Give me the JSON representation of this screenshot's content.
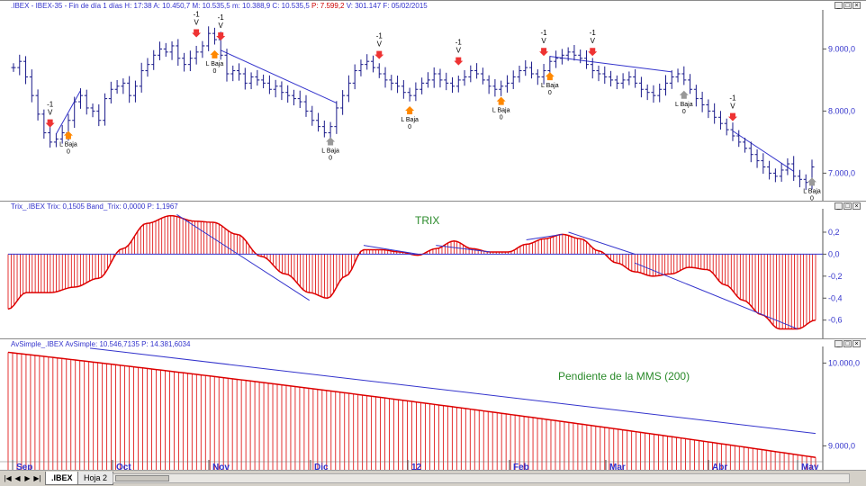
{
  "pane1": {
    "title_name": ".IBEX - IBEX-35 - Fin de día 1 días",
    "title_values": "H: 17:38  A: 10.450,7  M: 10.535,5  m: 10.388,9  C: 10.535,5",
    "title_change": "P: 7.599,2",
    "title_rest": "V: 301.147  F: 05/02/2015"
  },
  "pane2": {
    "title_name": "Trix_.IBEX",
    "title_values": "Trix: 0,1505  Band_Trix: 0,0000  P: 1,1967",
    "note": "TRIX"
  },
  "pane3": {
    "title_name": "AvSimple_.IBEX",
    "title_label": "AvSimple:",
    "title_values": "10.546,7135  P: 14.381,6034",
    "note": "Pendiente de la MMS (200)"
  },
  "window_buttons": [
    "_",
    "□",
    "×"
  ],
  "tabs": {
    "sheet1": ".IBEX",
    "sheet2": "Hoja 2"
  },
  "nav_buttons": [
    "|◀",
    "◀",
    "▶",
    "▶|"
  ],
  "colors": {
    "bars": "#1a1a8a",
    "histogram": "#dd0000",
    "trend": "#3333cc",
    "up_arrow": "#ff8800",
    "down_arrow": "#ee3333",
    "note": "#2a8a2a"
  },
  "chart_data": [
    {
      "type": "bar",
      "name": "price",
      "x_ticks": [
        "Sep",
        "Oct",
        "Nov",
        "Dic",
        "12",
        "Feb",
        "Mar",
        "Abr",
        "May"
      ],
      "y_ticks": [
        "9.000,0",
        "8.000,0",
        "7.000,0"
      ],
      "ylim": [
        6600,
        9600
      ],
      "closes": [
        8700,
        8800,
        8550,
        8250,
        7950,
        7650,
        7500,
        7550,
        7650,
        7850,
        8150,
        8250,
        8050,
        8000,
        7850,
        8200,
        8350,
        8400,
        8450,
        8250,
        8400,
        8650,
        8750,
        8900,
        9000,
        8950,
        9050,
        8850,
        8750,
        8850,
        8950,
        9050,
        9250,
        9150,
        8900,
        8600,
        8650,
        8600,
        8450,
        8550,
        8500,
        8450,
        8350,
        8400,
        8300,
        8250,
        8200,
        8150,
        8000,
        7850,
        7750,
        7650,
        7750,
        8050,
        8250,
        8450,
        8650,
        8750,
        8800,
        8700,
        8600,
        8500,
        8450,
        8400,
        8300,
        8250,
        8350,
        8450,
        8500,
        8600,
        8500,
        8450,
        8400,
        8500,
        8550,
        8650,
        8600,
        8500,
        8400,
        8350,
        8400,
        8450,
        8550,
        8650,
        8700,
        8600,
        8550,
        8650,
        8800,
        8850,
        8900,
        8950,
        8900,
        8850,
        8750,
        8650,
        8600,
        8550,
        8500,
        8450,
        8500,
        8550,
        8450,
        8350,
        8300,
        8250,
        8350,
        8450,
        8550,
        8600,
        8500,
        8350,
        8200,
        8100,
        8000,
        7900,
        7800,
        7700,
        7600,
        7500,
        7400,
        7300,
        7200,
        7100,
        7000,
        6950,
        7050,
        7150,
        6950,
        6900,
        6850,
        7100
      ],
      "signals": [
        {
          "label": "-1",
          "marker": "V",
          "kind": "down",
          "i": 6
        },
        {
          "label": "L Baja",
          "sub": "0",
          "kind": "up",
          "i": 9
        },
        {
          "label": "-1",
          "marker": "V",
          "kind": "down",
          "i": 30
        },
        {
          "label": "-1",
          "marker": "V",
          "kind": "down",
          "i": 34
        },
        {
          "label": "L Baja",
          "sub": "0",
          "kind": "up",
          "i": 33
        },
        {
          "label": "L Baja",
          "sub": "0",
          "kind": "up-gray",
          "i": 52
        },
        {
          "label": "-1",
          "marker": "V",
          "kind": "down",
          "i": 60
        },
        {
          "label": "L Baja",
          "sub": "0",
          "kind": "up",
          "i": 65
        },
        {
          "label": "-1",
          "marker": "V",
          "kind": "down",
          "i": 73
        },
        {
          "label": "L Baja",
          "sub": "0",
          "kind": "up",
          "i": 80
        },
        {
          "label": "-1",
          "marker": "V",
          "kind": "down",
          "i": 87
        },
        {
          "label": "L Baja",
          "sub": "0",
          "kind": "up",
          "i": 88
        },
        {
          "label": "-1",
          "marker": "V",
          "kind": "down",
          "i": 95
        },
        {
          "label": "L Baja",
          "sub": "0",
          "kind": "up-gray",
          "i": 110
        },
        {
          "label": "-1",
          "marker": "V",
          "kind": "down",
          "i": 118
        },
        {
          "label": "L Baja",
          "sub": "0",
          "kind": "up-gray",
          "i": 131
        }
      ]
    },
    {
      "type": "bar",
      "name": "trix",
      "y_ticks": [
        "0,2",
        "0,0",
        "-0,2",
        "-0,4",
        "-0,6"
      ],
      "ylim": [
        -0.75,
        0.38
      ],
      "keypoints": [
        [
          0,
          -0.5
        ],
        [
          3,
          -0.35
        ],
        [
          7,
          -0.35
        ],
        [
          11,
          -0.3
        ],
        [
          15,
          -0.22
        ],
        [
          19,
          0.05
        ],
        [
          23,
          0.28
        ],
        [
          27,
          0.35
        ],
        [
          31,
          0.3
        ],
        [
          34,
          0.29
        ],
        [
          38,
          0.18
        ],
        [
          42,
          -0.02
        ],
        [
          46,
          -0.18
        ],
        [
          50,
          -0.35
        ],
        [
          53,
          -0.4
        ],
        [
          56,
          -0.2
        ],
        [
          59,
          0.04
        ],
        [
          62,
          0.04
        ],
        [
          65,
          0.02
        ],
        [
          68,
          -0.01
        ],
        [
          71,
          0.05
        ],
        [
          74,
          0.12
        ],
        [
          77,
          0.05
        ],
        [
          80,
          0.02
        ],
        [
          83,
          0.02
        ],
        [
          86,
          0.09
        ],
        [
          89,
          0.14
        ],
        [
          92,
          0.18
        ],
        [
          95,
          0.14
        ],
        [
          98,
          0.03
        ],
        [
          101,
          -0.08
        ],
        [
          104,
          -0.16
        ],
        [
          107,
          -0.2
        ],
        [
          110,
          -0.18
        ],
        [
          113,
          -0.12
        ],
        [
          116,
          -0.14
        ],
        [
          119,
          -0.28
        ],
        [
          122,
          -0.42
        ],
        [
          125,
          -0.55
        ],
        [
          128,
          -0.68
        ],
        [
          131,
          -0.68
        ],
        [
          134,
          -0.6
        ]
      ]
    },
    {
      "type": "bar",
      "name": "sma200",
      "y_ticks": [
        "10.000,0",
        "9.000,0"
      ],
      "ylim": [
        8700,
        10200
      ],
      "start": 10130,
      "end": 8860
    }
  ]
}
